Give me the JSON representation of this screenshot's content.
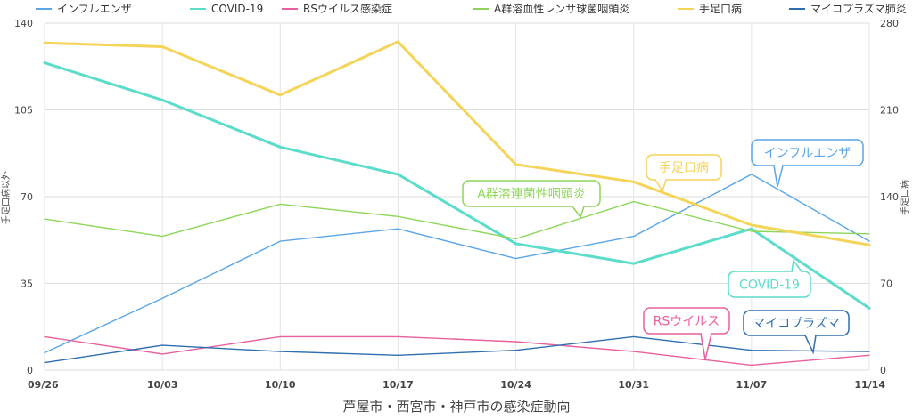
{
  "chart_data": {
    "type": "line",
    "title": "芦屋市・西宮市・神戸市の感染症動向",
    "categories": [
      "09/26",
      "10/03",
      "10/10",
      "10/17",
      "10/24",
      "10/31",
      "11/07",
      "11/14"
    ],
    "ylabel_left": "手足口病以外",
    "ylabel_right": "手足口病",
    "ylim_left": [
      0,
      140
    ],
    "ylim_right": [
      0,
      280
    ],
    "yticks_left": [
      0,
      35,
      70,
      105,
      140
    ],
    "yticks_right": [
      0,
      70,
      140,
      210,
      280
    ],
    "grid": true,
    "legend_position": "top",
    "series": [
      {
        "name": "インフルエンザ",
        "color": "#5aa6e6",
        "axis": "left",
        "width": 1.4,
        "values": [
          7,
          29,
          52,
          57,
          45,
          54,
          79,
          52
        ]
      },
      {
        "name": "COVID-19",
        "color": "#5cdcca",
        "axis": "left",
        "width": 3,
        "values": [
          124,
          109,
          90,
          79,
          51,
          43,
          57,
          25
        ]
      },
      {
        "name": "RSウイルス感染症",
        "color": "#e8609c",
        "axis": "left",
        "width": 1.4,
        "values": [
          13.5,
          6.5,
          13.5,
          13.5,
          11.5,
          7.5,
          2,
          6
        ]
      },
      {
        "name": "A群溶血性レンサ球菌咽頭炎",
        "color": "#8ed65a",
        "axis": "left",
        "width": 1.4,
        "values": [
          61,
          54,
          67,
          62,
          53,
          68,
          56,
          55
        ]
      },
      {
        "name": "手足口病",
        "color": "#f5d45a",
        "axis": "right",
        "width": 3,
        "values": [
          264,
          261,
          222,
          265,
          166,
          152,
          117,
          101
        ]
      },
      {
        "name": "マイコプラズマ肺炎",
        "color": "#2e6fb0",
        "axis": "left",
        "width": 1.4,
        "values": [
          3,
          10,
          7.5,
          6,
          8,
          13.5,
          8,
          7.5
        ]
      }
    ],
    "annotations": [
      {
        "text": "インフルエンザ",
        "series": "インフルエンザ",
        "color": "#5aa6e6"
      },
      {
        "text": "手足口病",
        "series": "手足口病",
        "color": "#f5d45a"
      },
      {
        "text": "A群溶連菌性咽頭炎",
        "series": "A群溶血性レンサ球菌咽頭炎",
        "color": "#8ed65a"
      },
      {
        "text": "COVID-19",
        "series": "COVID-19",
        "color": "#5cdcca"
      },
      {
        "text": "RSウイルス",
        "series": "RSウイルス感染症",
        "color": "#e8609c"
      },
      {
        "text": "マイコプラズマ",
        "series": "マイコプラズマ肺炎",
        "color": "#2e6fb0"
      }
    ]
  }
}
